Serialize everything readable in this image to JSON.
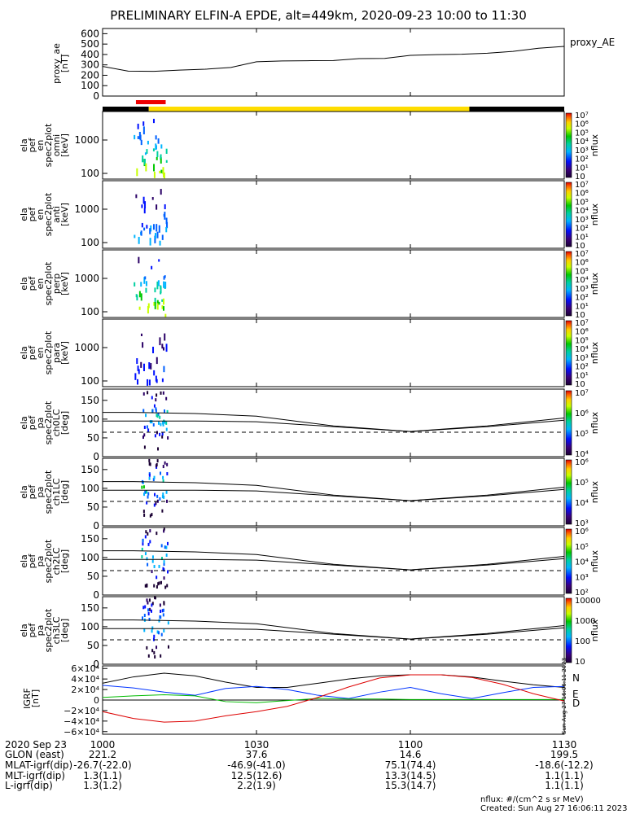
{
  "title": "PRELIMINARY ELFIN-A EPDE, alt=449km, 2020-09-23 10:00 to 11:30",
  "chart_data": {
    "type": "line",
    "x_range": [
      "10:00",
      "11:30"
    ],
    "x_ticks": [
      "1000",
      "1030",
      "1100",
      "1130"
    ],
    "top_panel": {
      "ylabel": [
        "proxy_ae",
        "[nT]"
      ],
      "legend": "proxy_AE",
      "y_ticks": [
        "0",
        "100",
        "200",
        "300",
        "400",
        "500",
        "600"
      ],
      "ylim": [
        0,
        650
      ],
      "x_minutes": [
        0,
        5,
        10,
        15,
        20,
        25,
        30,
        35,
        40,
        45,
        50,
        55,
        60,
        65,
        70,
        75,
        80,
        85,
        90
      ],
      "values": [
        285,
        240,
        238,
        250,
        258,
        275,
        330,
        338,
        340,
        342,
        360,
        362,
        392,
        398,
        402,
        412,
        430,
        460,
        478
      ]
    },
    "orbit_bars": [
      {
        "color": "#ee0000",
        "start_min": 6.5,
        "end_min": 12.3
      },
      {
        "color": "#000000",
        "start_min": 0,
        "end_min": 9.0
      },
      {
        "color": "#ffdd00",
        "start_min": 9.0,
        "end_min": 71.5
      },
      {
        "color": "#000000",
        "start_min": 71.5,
        "end_min": 90
      }
    ],
    "energy_panels": [
      {
        "label": [
          "ela",
          "pef",
          "en",
          "spec2plot",
          "omni",
          "[keV]"
        ]
      },
      {
        "label": [
          "ela",
          "pef",
          "en",
          "spec2plot",
          "anti",
          "[keV]"
        ]
      },
      {
        "label": [
          "ela",
          "pef",
          "en",
          "spec2plot",
          "perp",
          "[keV]"
        ]
      },
      {
        "label": [
          "ela",
          "pef",
          "en",
          "spec2plot",
          "para",
          "[keV]"
        ]
      }
    ],
    "energy_ticks": [
      "100",
      "1000"
    ],
    "energy_colorbar_ticks": [
      "10",
      "10¹",
      "10²",
      "10³",
      "10⁴",
      "10⁵",
      "10⁶",
      "10⁷"
    ],
    "pa_panels": [
      {
        "label": [
          "ela",
          "pef",
          "pa",
          "spec2plot",
          "ch0LC",
          "[deg]"
        ],
        "cbar": [
          "10⁴",
          "10⁵",
          "10⁶",
          "10⁷"
        ]
      },
      {
        "label": [
          "ela",
          "pef",
          "pa",
          "spec2plot",
          "ch1LC",
          "[deg]"
        ],
        "cbar": [
          "10³",
          "10⁴",
          "10⁵",
          "10⁶"
        ]
      },
      {
        "label": [
          "ela",
          "pef",
          "pa",
          "spec2plot",
          "ch2LC",
          "[deg]"
        ],
        "cbar": [
          "10²",
          "10³",
          "10⁴",
          "10⁵",
          "10⁶"
        ]
      },
      {
        "label": [
          "ela",
          "pef",
          "pa",
          "spec2plot",
          "ch3LC",
          "[deg]"
        ],
        "cbar": [
          "10",
          "100",
          "1000",
          "10000"
        ]
      }
    ],
    "pa_ticks": [
      "0",
      "50",
      "100",
      "150"
    ],
    "pa_ylim": [
      0,
      180
    ],
    "colorbar_label": "nflux",
    "pa_lines": {
      "x_minutes": [
        0,
        6,
        18,
        30,
        45,
        60,
        75,
        90
      ],
      "upper": [
        118,
        118,
        115,
        108,
        82,
        67,
        82,
        103
      ],
      "lower": [
        95,
        95,
        95,
        93,
        80,
        67,
        80,
        97
      ],
      "dashed": 65
    },
    "igrf_panel": {
      "ylabel": [
        "IGRF",
        "[nT]"
      ],
      "y_ticks": [
        "6×10⁴",
        "4×10⁴",
        "2×10⁴",
        "0",
        "−2×10⁴",
        "−4×10⁴",
        "−6×10⁴"
      ],
      "ylim": [
        -65000,
        65000
      ],
      "x_minutes": [
        0,
        6,
        12,
        18,
        24,
        30,
        36,
        42,
        48,
        54,
        60,
        66,
        72,
        78,
        84,
        90
      ],
      "series": [
        {
          "name": "N",
          "color": "#000000",
          "values": [
            32000,
            44000,
            51000,
            46000,
            34000,
            24000,
            24000,
            32000,
            40000,
            46000,
            48000,
            48000,
            44000,
            36000,
            29000,
            24000
          ]
        },
        {
          "name": "E",
          "color": "#0033ff",
          "values": [
            28000,
            23000,
            15000,
            9000,
            22000,
            26000,
            20000,
            9000,
            3000,
            15000,
            24000,
            12000,
            3000,
            14000,
            24000,
            26000
          ]
        },
        {
          "name": "D",
          "color": "#00bb00",
          "values": [
            5000,
            8000,
            10000,
            8000,
            -3000,
            -5000,
            -1000,
            3000,
            2000,
            2000,
            1000,
            1000,
            1000,
            1000,
            1000,
            1000
          ]
        },
        {
          "name": "",
          "color": "#dd0000",
          "values": [
            -22000,
            -35000,
            -42000,
            -40000,
            -30000,
            -22000,
            -12000,
            5000,
            25000,
            42000,
            48000,
            48000,
            43000,
            30000,
            12000,
            -2000
          ]
        }
      ],
      "side_stamp": "Sun Aug 27 16:06:11 2023"
    },
    "ephemeris": {
      "labels": [
        "2020 Sep 23",
        "GLON (east)",
        "MLAT-igrf(dip)",
        "MLT-igrf(dip)",
        "L-igrf(dip)"
      ],
      "columns": [
        [
          "1000",
          "221.2",
          "-26.7(-22.0)",
          "1.3(1.1)",
          "1.3(1.2)"
        ],
        [
          "1030",
          "37.6",
          "-46.9(-41.0)",
          "12.5(12.6)",
          "2.2(1.9)"
        ],
        [
          "1100",
          "14.6",
          "75.1(74.4)",
          "13.3(14.5)",
          "15.3(14.7)"
        ],
        [
          "1130",
          "199.5",
          "-18.6(-12.2)",
          "1.1(1.1)",
          "1.1(1.1)"
        ]
      ]
    }
  },
  "footer": {
    "nflux_units": "nflux: #/(cm^2 s sr MeV)",
    "created": "Created: Sun Aug 27 16:06:11 2023"
  }
}
